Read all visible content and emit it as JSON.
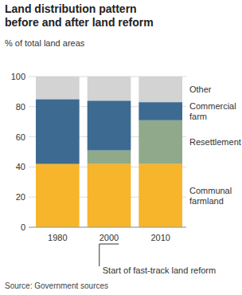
{
  "chart_data": {
    "type": "bar",
    "stacked": true,
    "title": "Land distribution pattern before and after land reform",
    "y_label": "% of total land areas",
    "categories": [
      "1980",
      "2000",
      "2010"
    ],
    "series": [
      {
        "name": "Communal farmland",
        "color": "#f7b52c",
        "values": [
          42,
          42,
          42
        ]
      },
      {
        "name": "Resettlement",
        "color": "#8fa98a",
        "values": [
          0,
          9,
          29
        ]
      },
      {
        "name": "Commercial farm",
        "color": "#3d6a90",
        "values": [
          43,
          33,
          12
        ]
      },
      {
        "name": "Other",
        "color": "#d3d3d3",
        "values": [
          15,
          16,
          17
        ]
      }
    ],
    "ylim": [
      0,
      100
    ],
    "yticks": [
      0,
      20,
      40,
      60,
      80,
      100
    ],
    "grid": true,
    "annotation": "Start of fast-track land reform",
    "source": "Source: Government sources"
  }
}
